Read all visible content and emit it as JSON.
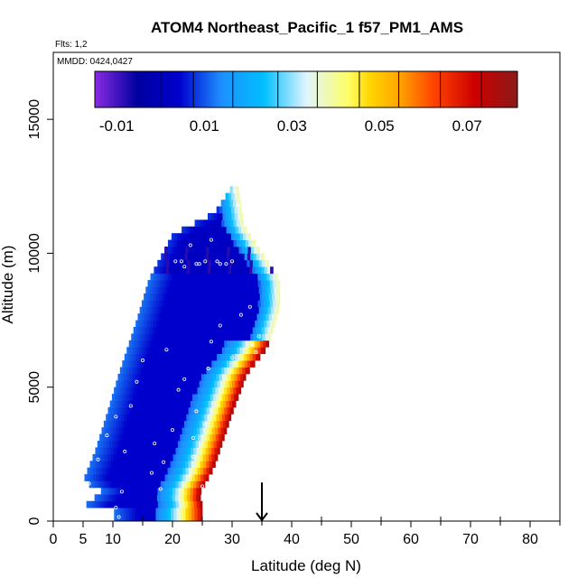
{
  "chart_data": {
    "type": "heatmap",
    "title": "ATOM4 Northeast_Pacific_1 f57_PM1_AMS",
    "annotations": {
      "flights": "Flts: 1,2",
      "dates": "MMDD: 0424,0427"
    },
    "xlabel": "Latitude (deg N)",
    "ylabel": "Altitude (m)",
    "xlim": [
      0,
      85
    ],
    "ylim": [
      0,
      17500
    ],
    "x_ticks": [
      0,
      5,
      10,
      20,
      30,
      40,
      50,
      60,
      70,
      80
    ],
    "x_minor_ticks": [
      15,
      25,
      35,
      45,
      55,
      65,
      75,
      85
    ],
    "y_ticks": [
      0,
      5000,
      10000,
      15000
    ],
    "colorbar": {
      "min": -0.015,
      "max": 0.0815,
      "ticks": [
        -0.01,
        0.01,
        0.03,
        0.05,
        0.07
      ],
      "tick_labels": [
        "-0.01",
        "0.01",
        "0.03",
        "0.05",
        "0.07"
      ],
      "segment_edges": [
        0.0,
        0.0075,
        0.0165,
        0.0268,
        0.0358,
        0.0454,
        0.0544,
        0.0639,
        0.0733
      ],
      "colors": [
        "#8a2be2",
        "#0000a0",
        "#0000cd",
        "#1e90ff",
        "#00bfff",
        "#e0f4ff",
        "#ffff66",
        "#ffd700",
        "#ffa500",
        "#ff4500",
        "#cc0000",
        "#8b1a1a"
      ],
      "color_stops": [
        0.0,
        0.1,
        0.2,
        0.3,
        0.4,
        0.5,
        0.6,
        0.65,
        0.72,
        0.8,
        0.9,
        1.0
      ]
    },
    "marker": {
      "type": "arrow-down",
      "x": 35,
      "y_range": [
        0,
        700
      ]
    },
    "field": {
      "alt_range": [
        0,
        12500
      ],
      "alt_step": 250,
      "west_edge": [
        [
          400,
          10.2
        ],
        [
          700,
          4.0
        ],
        [
          1000,
          9.0
        ],
        [
          1500,
          5.0
        ],
        [
          2600,
          7.0
        ],
        [
          4000,
          9.0
        ],
        [
          5500,
          11.0
        ],
        [
          7500,
          14.0
        ],
        [
          9000,
          16.0
        ],
        [
          10700,
          20.0
        ],
        [
          11500,
          27.0
        ],
        [
          12500,
          30.0
        ]
      ],
      "east_edge": [
        [
          0,
          25.0
        ],
        [
          700,
          25.0
        ],
        [
          1000,
          24.5
        ],
        [
          2000,
          27.0
        ],
        [
          4000,
          30.0
        ],
        [
          5500,
          32.5
        ],
        [
          6500,
          36.0
        ],
        [
          8000,
          38.0
        ],
        [
          9000,
          38.0
        ],
        [
          10000,
          35.0
        ],
        [
          11000,
          32.0
        ],
        [
          12500,
          31.0
        ]
      ],
      "surface_layer": {
        "alt": [
          0,
          400
        ],
        "lat": [
          10.2,
          25.0
        ]
      },
      "plume_bottom": 550,
      "plume_top": 6700,
      "plume_width_deg": 7.5,
      "plume_peak": 0.078
    },
    "sample_points": [
      [
        10.5,
        500
      ],
      [
        11.0,
        150
      ],
      [
        4.5,
        600
      ],
      [
        6.0,
        1400
      ],
      [
        7.5,
        2300
      ],
      [
        9.0,
        3200
      ],
      [
        10.5,
        3900
      ],
      [
        11.5,
        1100
      ],
      [
        12.0,
        2600
      ],
      [
        13.0,
        4300
      ],
      [
        14.0,
        5200
      ],
      [
        15.0,
        6000
      ],
      [
        16.5,
        1800
      ],
      [
        17.0,
        2900
      ],
      [
        18.0,
        1200
      ],
      [
        18.5,
        2200
      ],
      [
        19.0,
        6400
      ],
      [
        20.0,
        3400
      ],
      [
        21.0,
        4900
      ],
      [
        22.0,
        5300
      ],
      [
        23.0,
        1700
      ],
      [
        23.5,
        2400
      ],
      [
        23.5,
        3100
      ],
      [
        24.0,
        4100
      ],
      [
        25.5,
        3600
      ],
      [
        25.0,
        1300
      ],
      [
        26.0,
        5700
      ],
      [
        26.5,
        6700
      ],
      [
        28.0,
        7300
      ],
      [
        30.0,
        6100
      ],
      [
        31.5,
        7700
      ],
      [
        33.0,
        8000
      ],
      [
        33.5,
        6600
      ],
      [
        34.0,
        6300
      ],
      [
        34.5,
        6900
      ],
      [
        16.5,
        10500
      ],
      [
        17.5,
        10500
      ],
      [
        20.5,
        9700
      ],
      [
        21.5,
        9700
      ],
      [
        22.0,
        9500
      ],
      [
        23.0,
        10300
      ],
      [
        24.0,
        9600
      ],
      [
        24.5,
        9600
      ],
      [
        25.5,
        9700
      ],
      [
        26.5,
        10500
      ],
      [
        27.5,
        9700
      ],
      [
        28.0,
        9600
      ],
      [
        29.0,
        9600
      ],
      [
        30.0,
        9700
      ],
      [
        31.0,
        11800
      ],
      [
        30.5,
        12300
      ]
    ]
  }
}
